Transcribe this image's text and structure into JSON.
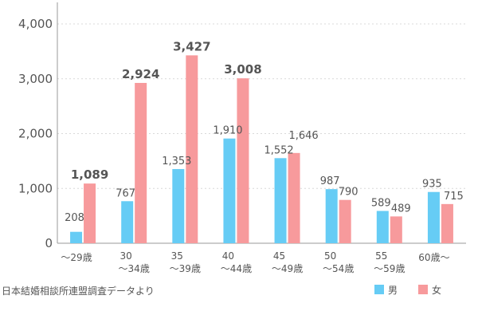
{
  "chart_data": {
    "type": "bar",
    "categories": [
      [
        "～29歳"
      ],
      [
        "30",
        "～34歳"
      ],
      [
        "35",
        "～39歳"
      ],
      [
        "40",
        "～44歳"
      ],
      [
        "45",
        "～49歳"
      ],
      [
        "50",
        "～54歳"
      ],
      [
        "55",
        "～59歳"
      ],
      [
        "60歳～"
      ]
    ],
    "series": [
      {
        "name": "男",
        "values": [
          208,
          767,
          1353,
          1910,
          1552,
          987,
          589,
          935
        ],
        "color": "#66ccf5"
      },
      {
        "name": "女",
        "values": [
          1089,
          2924,
          3427,
          3008,
          1646,
          790,
          489,
          715
        ],
        "color": "#f79a9c"
      }
    ],
    "data_labels": {
      "男": [
        "208",
        "767",
        "1,353",
        "1,910",
        "1,552",
        "987",
        "589",
        "935"
      ],
      "女": [
        "1,089",
        "2,924",
        "3,427",
        "3,008",
        "1,646",
        "790",
        "489",
        "715"
      ]
    },
    "bold_labels": [
      "女:0",
      "女:1",
      "女:2",
      "女:3"
    ],
    "yticks": [
      0,
      1000,
      2000,
      3000,
      4000
    ],
    "ytick_labels": [
      "0",
      "1,000",
      "2,000",
      "3,000",
      "4,000"
    ],
    "ylim": [
      0,
      4000
    ],
    "title": "",
    "xlabel": "",
    "ylabel": "",
    "grid": true,
    "legend_position": "bottom-right",
    "source_note": "日本結婚相談所連盟調査データより"
  }
}
